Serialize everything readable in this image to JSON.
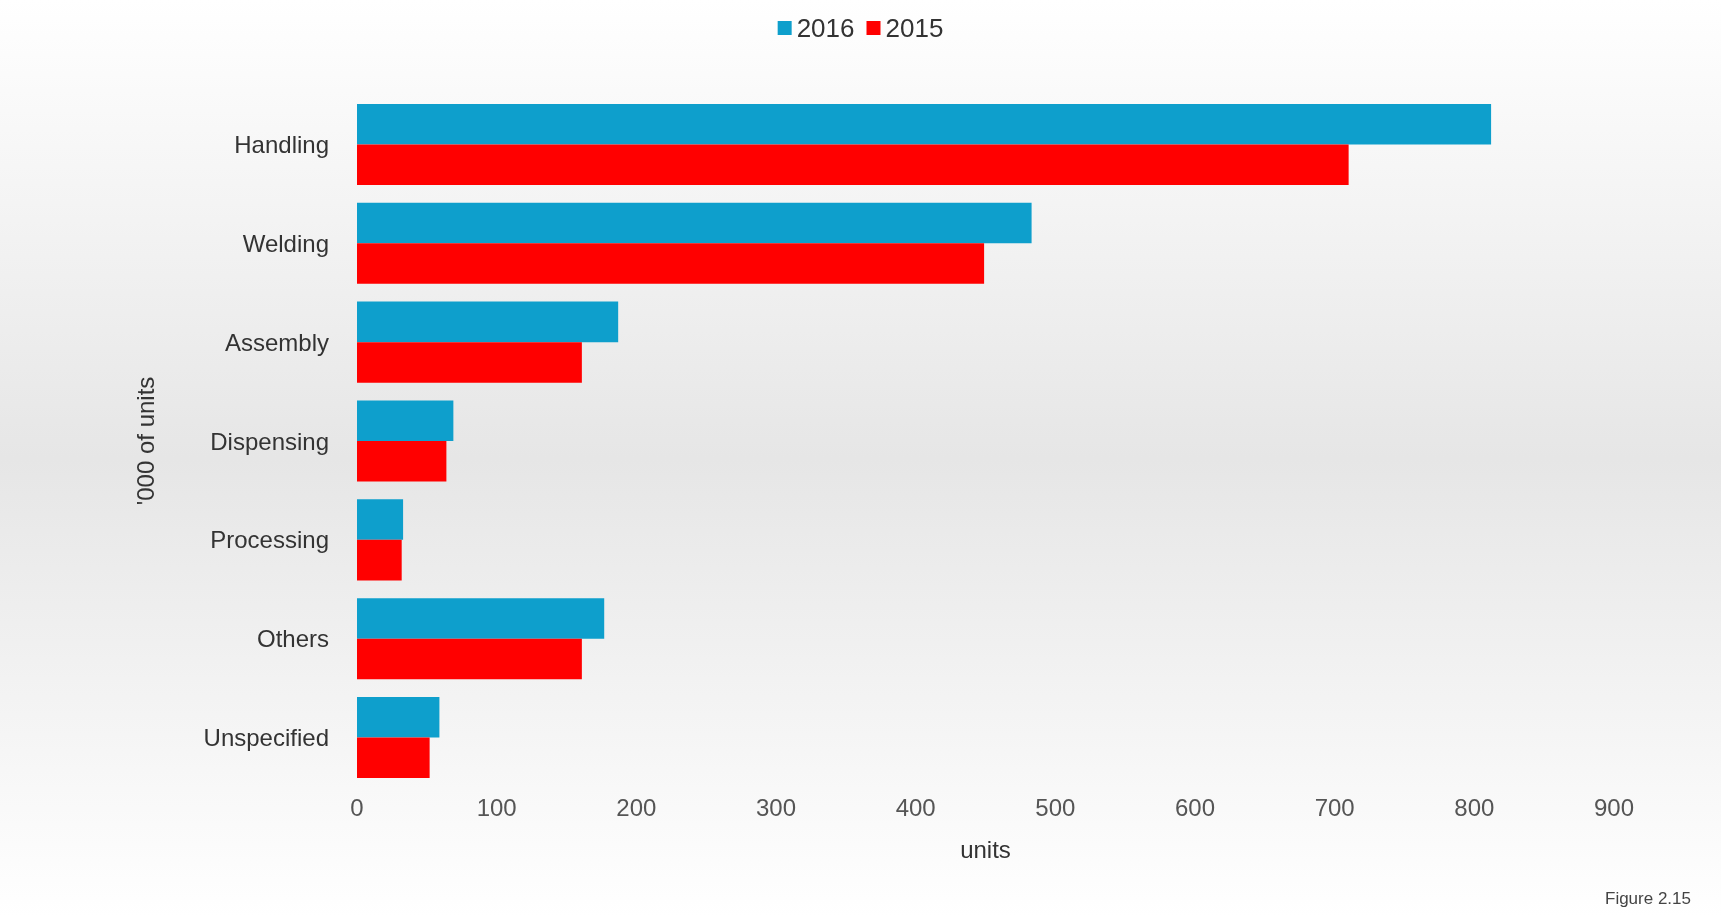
{
  "chart_data": {
    "type": "bar",
    "orientation": "horizontal",
    "categories": [
      "Handling",
      "Welding",
      "Assembly",
      "Dispensing",
      "Processing",
      "Others",
      "Unspecified"
    ],
    "series": [
      {
        "name": "2016",
        "color": "#0e9fcc",
        "values": [
          812,
          483,
          187,
          69,
          33,
          177,
          59
        ]
      },
      {
        "name": "2015",
        "color": "#ff0000",
        "values": [
          710,
          449,
          161,
          64,
          32,
          161,
          52
        ]
      }
    ],
    "xlim": [
      0,
      900
    ],
    "xticks": [
      0,
      100,
      200,
      300,
      400,
      500,
      600,
      700,
      800,
      900
    ],
    "xlabel": "units",
    "ylabel": "'000 of units",
    "legend": "top",
    "grid": false,
    "annotations": [
      "Figure 2.15"
    ]
  }
}
